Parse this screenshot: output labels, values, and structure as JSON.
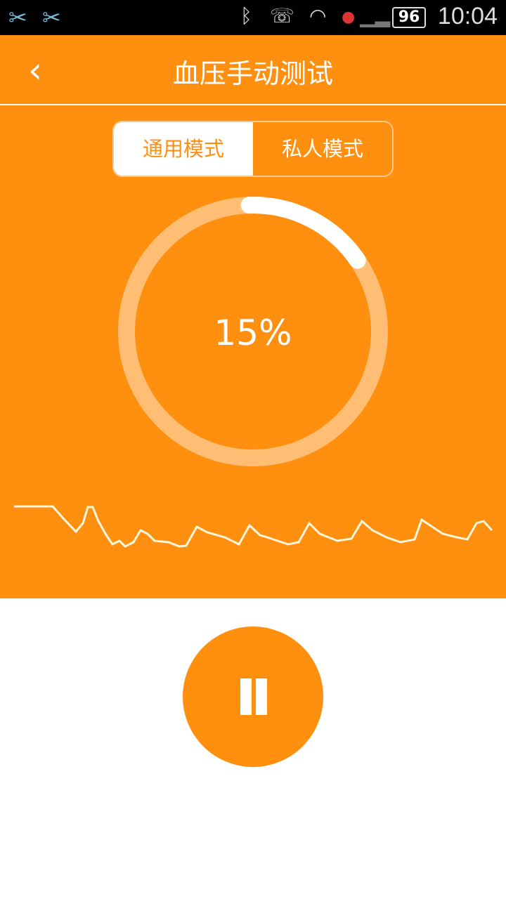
{
  "status_bar": {
    "time": "10:04",
    "battery": "96",
    "icons": [
      "scissors-icon",
      "scissors-icon",
      "bluetooth-icon",
      "vibrate-call-icon",
      "wifi-icon",
      "sim-unknown-icon",
      "signal-icon"
    ]
  },
  "header": {
    "title": "血压手动测试",
    "back_icon": "chevron-left-icon"
  },
  "mode_tabs": [
    {
      "label": "通用模式",
      "selected": true
    },
    {
      "label": "私人模式",
      "selected": false
    }
  ],
  "progress": {
    "percent_label": "15%",
    "value": 15
  },
  "control": {
    "icon": "pause-icon"
  },
  "colors": {
    "accent": "#fe8f0f",
    "ring_track": "#ffbe73",
    "white": "#ffffff"
  }
}
